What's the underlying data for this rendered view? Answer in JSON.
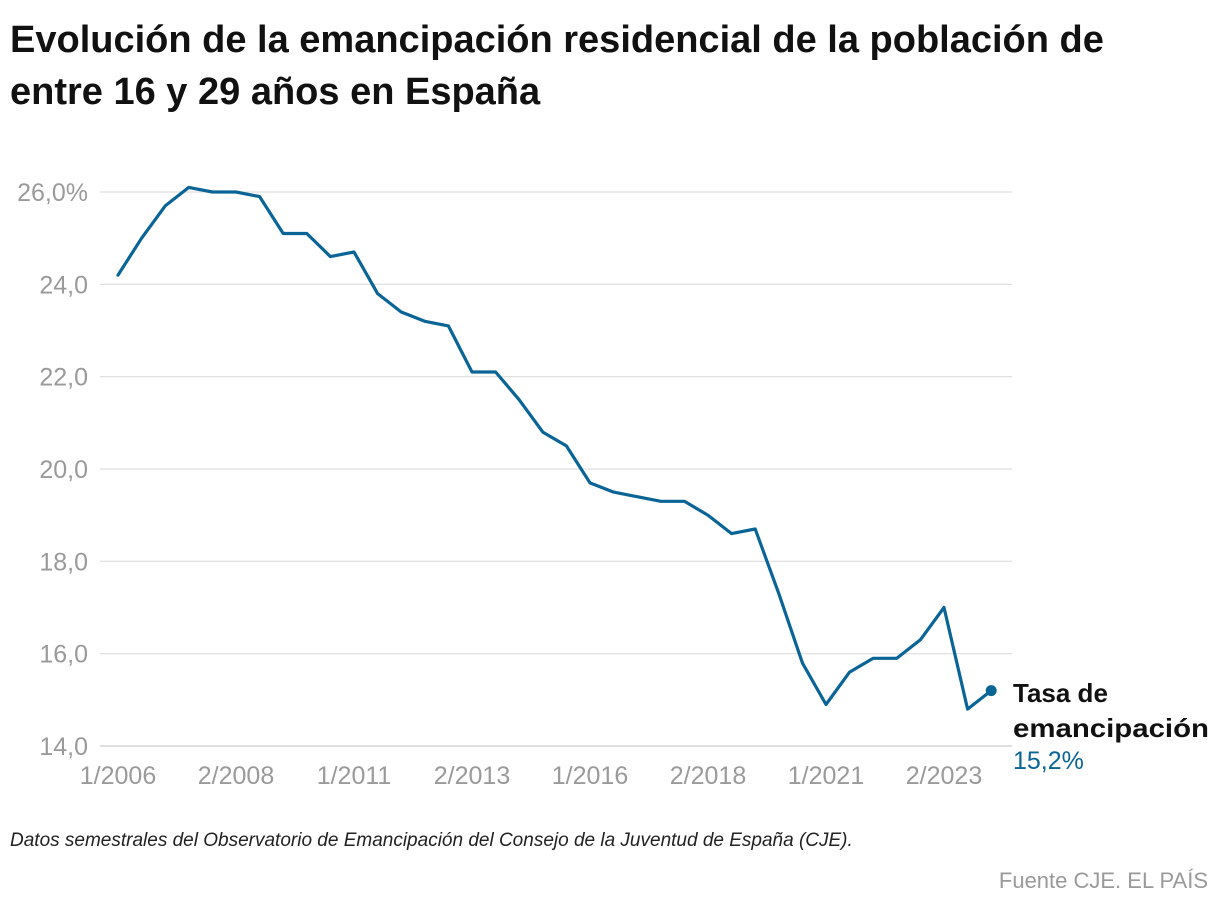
{
  "title": "Evolución de la emancipación residencial de la población de entre 16 y 29 años en España",
  "note": "Datos semestrales del Observatorio de Emancipación del Consejo de la Juventud de España (CJE).",
  "source": "Fuente CJE. EL PAÍS",
  "colors": {
    "line": "#0a6496",
    "grid": "#dddddd",
    "axis_text": "#9a9a9a",
    "label_text": "#111111"
  },
  "chart_data": {
    "type": "line",
    "title": "Evolución de la emancipación residencial de la población de entre 16 y 29 años en España",
    "xlabel": "",
    "ylabel": "",
    "ylim": [
      14.0,
      26.0
    ],
    "y_ticks": [
      14.0,
      16.0,
      18.0,
      20.0,
      22.0,
      24.0,
      26.0
    ],
    "y_tick_labels": [
      "14,0",
      "16,0",
      "18,0",
      "20,0",
      "22,0",
      "24,0",
      "26,0%"
    ],
    "x_ticks": [
      {
        "index": 0,
        "label": "1/2006"
      },
      {
        "index": 5,
        "label": "2/2008"
      },
      {
        "index": 10,
        "label": "1/2011"
      },
      {
        "index": 15,
        "label": "2/2013"
      },
      {
        "index": 20,
        "label": "1/2016"
      },
      {
        "index": 25,
        "label": "2/2018"
      },
      {
        "index": 30,
        "label": "1/2021"
      },
      {
        "index": 35,
        "label": "2/2023"
      }
    ],
    "grid": true,
    "series": [
      {
        "name": "Tasa de emancipación",
        "values": [
          24.2,
          25.0,
          25.7,
          26.1,
          26.0,
          26.0,
          25.9,
          25.1,
          25.1,
          24.6,
          24.7,
          23.8,
          23.4,
          23.2,
          23.1,
          22.1,
          22.1,
          21.5,
          20.8,
          20.5,
          19.7,
          19.5,
          19.4,
          19.3,
          19.3,
          19.0,
          18.6,
          18.7,
          17.3,
          15.8,
          14.9,
          15.6,
          15.9,
          15.9,
          16.3,
          17.0,
          14.8,
          15.2
        ]
      }
    ],
    "end_label": {
      "line1": "Tasa de",
      "line2": "emancipación",
      "value": "15,2%"
    }
  }
}
